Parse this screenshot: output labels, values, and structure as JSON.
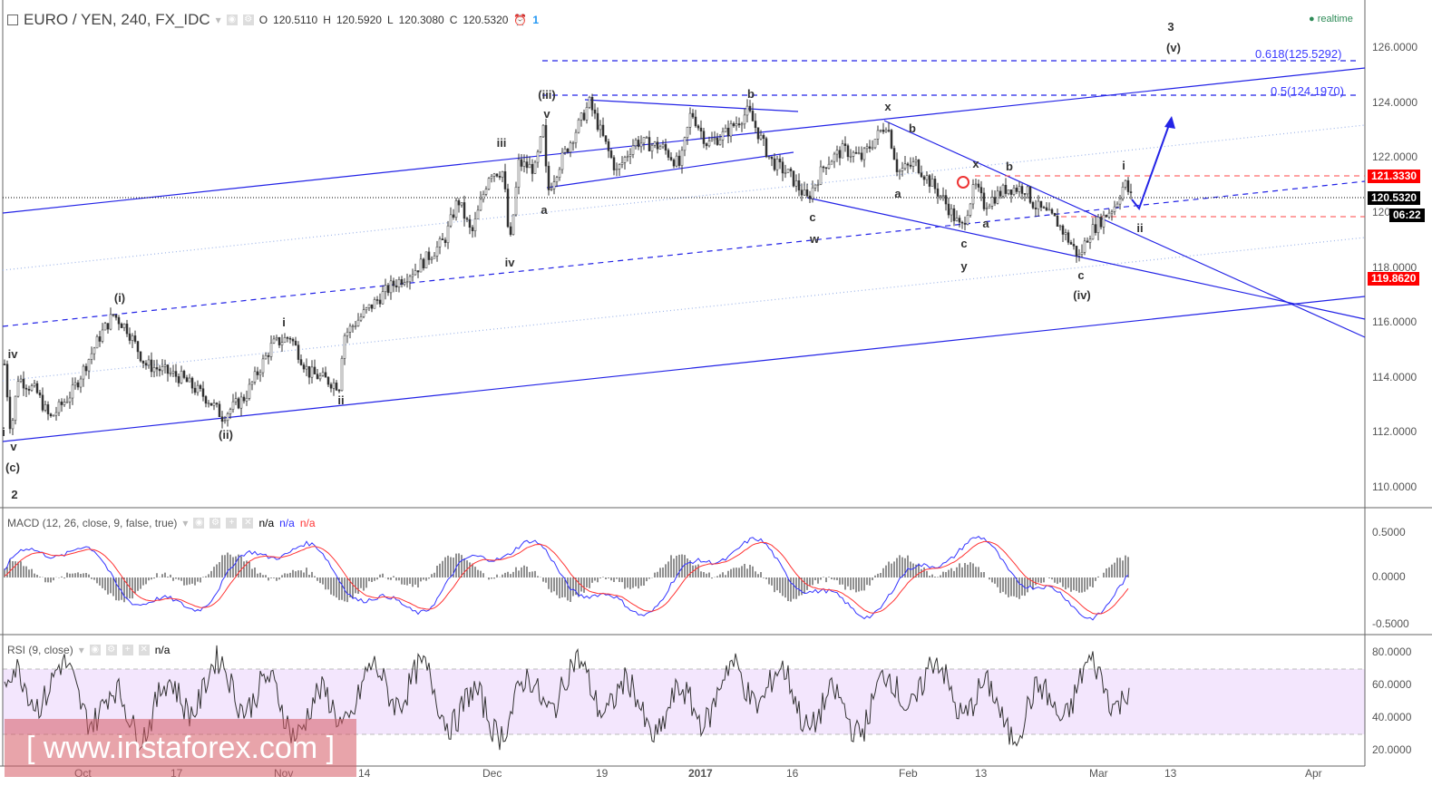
{
  "header": {
    "symbol": "EURO / YEN, 240, FX_IDC",
    "open_label": "O",
    "open": "120.5110",
    "high_label": "H",
    "high": "120.5920",
    "low_label": "L",
    "low": "120.3080",
    "close_label": "C",
    "close": "120.5320",
    "alert_count": "1"
  },
  "status": "realtime",
  "price_axis": [
    "126.0000",
    "124.0000",
    "122.0000",
    "120",
    "118.0000",
    "116.0000",
    "114.0000",
    "112.0000",
    "110.0000"
  ],
  "price_tags": {
    "resistance": "121.3330",
    "last": "120.5320",
    "countdown": "06:22",
    "support": "119.8620"
  },
  "colors": {
    "up_tag": "#ff0000",
    "last_tag": "#000000",
    "trendline": "#2323e6",
    "macd": "#3333ff",
    "signal": "#ff3333",
    "rsi_band": "#f3e6fd"
  },
  "fib_levels": [
    "0.618(125.5292)",
    "0.5(124.1970)"
  ],
  "wave_labels": [
    "3",
    "(v)",
    "(iii)",
    "b",
    "v",
    "iii",
    "a",
    "iv",
    "x",
    "b",
    "x",
    "b",
    "a",
    "c",
    "w",
    "a",
    "c",
    "y",
    "c",
    "(iv)",
    "i",
    "ii",
    "(i)",
    "i",
    "ii",
    "(ii)",
    "iv",
    "i",
    "v",
    "(c)",
    "2"
  ],
  "macd": {
    "title": "MACD (12, 26, close, 9, false, true)",
    "values": [
      "n/a",
      "n/a",
      "n/a"
    ],
    "axis": [
      "0.5000",
      "0.0000",
      "-0.5000"
    ]
  },
  "rsi": {
    "title": "RSI (9, close)",
    "value": "n/a",
    "axis": [
      "80.0000",
      "60.0000",
      "40.0000",
      "20.0000"
    ]
  },
  "time_axis": [
    "Oct",
    "17",
    "Nov",
    "14",
    "Dec",
    "19",
    "2017",
    "16",
    "Feb",
    "13",
    "Mar",
    "13",
    "Apr"
  ],
  "watermark": "[ www.instaforex.com ]"
}
